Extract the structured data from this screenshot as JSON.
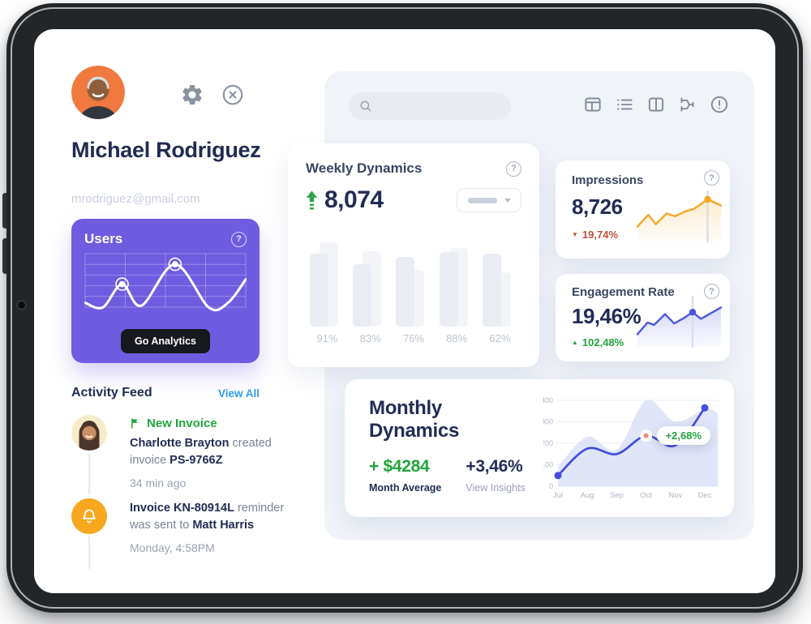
{
  "profile": {
    "name": "Michael Rodriguez",
    "email": "mrodriguez@gmail.com"
  },
  "header": {
    "icons": [
      "settings-gear",
      "close"
    ]
  },
  "users_card": {
    "title": "Users",
    "button_label": "Go Analytics"
  },
  "activity": {
    "title": "Activity Feed",
    "view_all_label": "View All",
    "item1": {
      "badge": "New Invoice",
      "actor": "Charlotte Brayton",
      "middle": " created invoice ",
      "code": "PS-9766Z",
      "time": "34 min ago"
    },
    "item2": {
      "code": "Invoice KN-80914L",
      "middle": " reminder was sent to ",
      "actor": "Matt Harris",
      "time": "Monday, 4:58PM"
    }
  },
  "toolbar": {
    "icons": [
      "dashboard-grid",
      "list",
      "split-columns",
      "flow",
      "alert"
    ]
  },
  "search": {
    "value": "",
    "placeholder": ""
  },
  "weekly": {
    "title": "Weekly Dynamics",
    "value": "8,074"
  },
  "impressions": {
    "title": "Impressions",
    "value": "8,726",
    "delta": "19,74%",
    "direction": "down"
  },
  "engagement": {
    "title": "Engagement Rate",
    "value": "19,46%",
    "delta": "102,48%",
    "direction": "up"
  },
  "monthly": {
    "title": "Monthly Dynamics",
    "average_value": "+ $4284",
    "average_label": "Month Average",
    "percent_value": "+3,46%",
    "percent_label": "View Insights"
  },
  "colors": {
    "purple": "#6F5CE0",
    "navy": "#222C55",
    "green": "#21A53C",
    "red": "#C0513B",
    "blue_link": "#2F9BF1",
    "orange": "#F6A723",
    "indigo": "#444CDB",
    "panel": "#F0F3F8"
  },
  "chart_data": [
    {
      "id": "users-spark",
      "type": "line",
      "title": "Users",
      "points": [
        [
          0,
          20
        ],
        [
          11,
          12
        ],
        [
          23,
          52
        ],
        [
          35,
          15
        ],
        [
          56,
          86
        ],
        [
          77,
          12
        ],
        [
          89,
          20
        ],
        [
          100,
          60
        ]
      ],
      "markers": [
        2,
        4
      ],
      "line_color": "#FFFFFF",
      "grid": true
    },
    {
      "id": "weekly-bars",
      "type": "bar",
      "title": "Weekly Dynamics",
      "categories": [
        "91%",
        "83%",
        "76%",
        "88%",
        "62%"
      ],
      "series": [
        {
          "name": "current",
          "values": [
            78,
            66,
            74,
            79,
            78
          ]
        },
        {
          "name": "previous",
          "values": [
            90,
            80,
            60,
            84,
            58
          ]
        }
      ],
      "ylim": [
        0,
        100
      ],
      "bar_colors": [
        "#E9EDF3",
        "#F2F4F8"
      ]
    },
    {
      "id": "impressions-spark",
      "type": "line",
      "title": "Impressions",
      "points": [
        [
          0,
          30
        ],
        [
          13,
          55
        ],
        [
          22,
          35
        ],
        [
          35,
          58
        ],
        [
          45,
          52
        ],
        [
          57,
          62
        ],
        [
          68,
          68
        ],
        [
          84,
          88
        ],
        [
          100,
          75
        ]
      ],
      "marker_index": 7,
      "line_color": "#F6A723"
    },
    {
      "id": "engagement-spark",
      "type": "line",
      "title": "Engagement Rate",
      "points": [
        [
          0,
          25
        ],
        [
          12,
          50
        ],
        [
          20,
          45
        ],
        [
          33,
          68
        ],
        [
          44,
          48
        ],
        [
          56,
          60
        ],
        [
          66,
          72
        ],
        [
          76,
          58
        ],
        [
          100,
          82
        ]
      ],
      "marker_index": 6,
      "line_color": "#4A56E2"
    },
    {
      "id": "monthly-dynamics",
      "type": "area",
      "title": "Monthly Dynamics",
      "x": [
        "Jul",
        "Aug",
        "Sep",
        "Oct",
        "Nov",
        "Dec"
      ],
      "line_values": [
        50,
        175,
        150,
        235,
        190,
        365
      ],
      "area_values": [
        90,
        230,
        170,
        400,
        300,
        360
      ],
      "ylim": [
        0,
        400
      ],
      "y_ticks": [
        400,
        300,
        200,
        100,
        0
      ],
      "tooltip": {
        "month": "Oct",
        "text": "+2,68%"
      },
      "line_color": "#444CDB",
      "area_color": "#D8DFF6",
      "grid": true,
      "legend": "none"
    }
  ]
}
